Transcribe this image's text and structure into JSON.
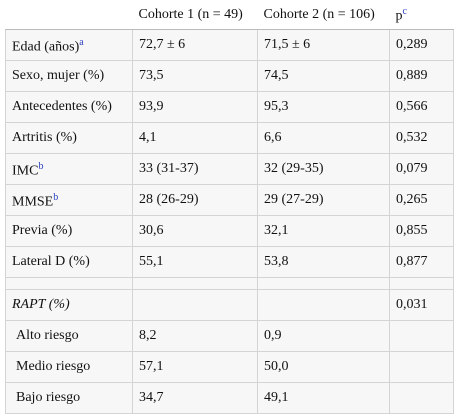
{
  "table": {
    "header": {
      "cohort1": "Cohorte 1 (n = 49)",
      "cohort2": "Cohorte 2 (n = 106)",
      "p": "p",
      "p_note": "c"
    },
    "rows": [
      {
        "label": "Edad (años)",
        "note": "a",
        "c1": "72,7 ± 6",
        "c2": "71,5 ± 6",
        "p": "0,289"
      },
      {
        "label": "Sexo, mujer (%)",
        "c1": "73,5",
        "c2": "74,5",
        "p": "0,889"
      },
      {
        "label": "Antecedentes (%)",
        "c1": "93,9",
        "c2": "95,3",
        "p": "0,566"
      },
      {
        "label": "Artritis (%)",
        "c1": "4,1",
        "c2": "6,6",
        "p": "0,532"
      },
      {
        "label": "IMC",
        "note": "b",
        "c1": "33 (31-37)",
        "c2": "32 (29-35)",
        "p": "0,079"
      },
      {
        "label": "MMSE",
        "note": "b",
        "c1": "28 (26-29)",
        "c2": "29 (27-29)",
        "p": "0,265"
      },
      {
        "label": "Previa (%)",
        "c1": "30,6",
        "c2": "32,1",
        "p": "0,855"
      },
      {
        "label": "Lateral D (%)",
        "c1": "55,1",
        "c2": "53,8",
        "p": "0,877"
      },
      {
        "label": "RAPT (%)",
        "italic": true,
        "p": "0,031"
      },
      {
        "label": "Alto riesgo",
        "indent": true,
        "c1": "8,2",
        "c2": "0,9"
      },
      {
        "label": "Medio riesgo",
        "indent": true,
        "c1": "57,1",
        "c2": "50,0"
      },
      {
        "label": "Bajo riesgo",
        "indent": true,
        "c1": "34,7",
        "c2": "49,1"
      }
    ]
  }
}
